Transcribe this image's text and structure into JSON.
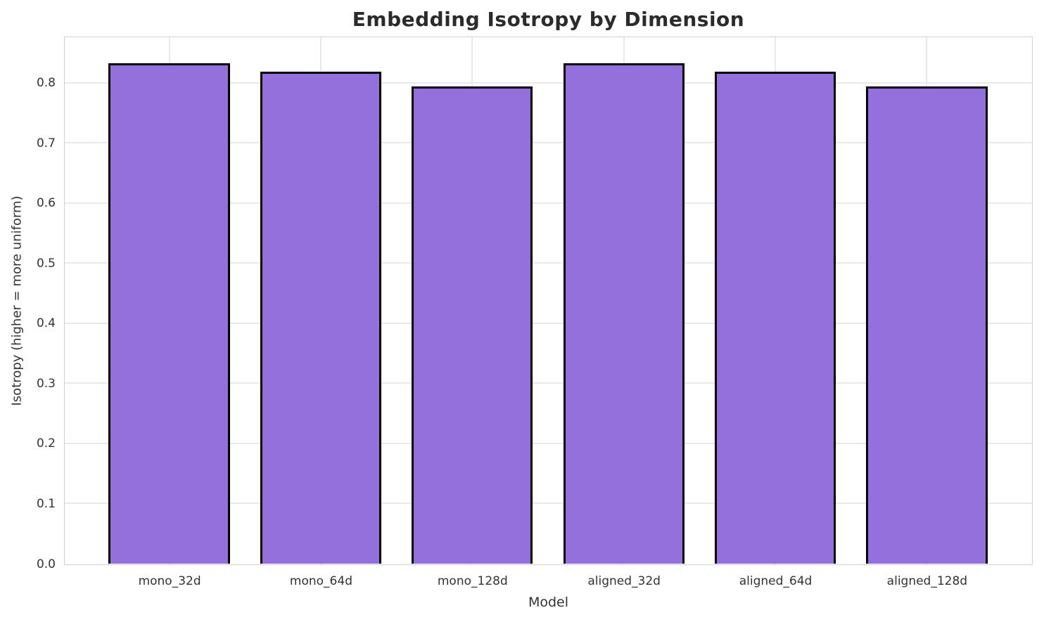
{
  "chart_data": {
    "type": "bar",
    "title": "Embedding Isotropy by Dimension",
    "xlabel": "Model",
    "ylabel": "Isotropy (higher = more uniform)",
    "categories": [
      "mono_32d",
      "mono_64d",
      "mono_128d",
      "aligned_32d",
      "aligned_64d",
      "aligned_128d"
    ],
    "values": [
      0.833,
      0.819,
      0.794,
      0.833,
      0.819,
      0.794
    ],
    "ytick_labels": [
      "0.0",
      "0.1",
      "0.2",
      "0.3",
      "0.4",
      "0.5",
      "0.6",
      "0.7",
      "0.8"
    ],
    "yticks": [
      0.0,
      0.1,
      0.2,
      0.3,
      0.4,
      0.5,
      0.6,
      0.7,
      0.8
    ],
    "ylim": [
      0,
      0.876
    ],
    "xlim_units": [
      -0.69,
      5.69
    ],
    "bar_width_units": 0.8,
    "grid": true,
    "legend": false,
    "bar_color": "#9370DB",
    "bar_edge_color": "#000000",
    "grid_color": "#e9e9e9",
    "spine_color": "#d0d0d0"
  }
}
